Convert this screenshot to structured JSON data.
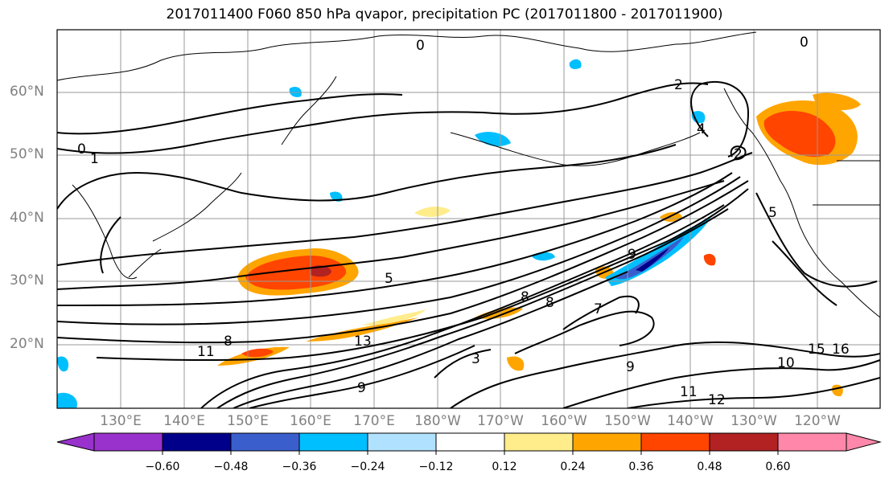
{
  "title": "2017011400 F060 850 hPa qvapor, precipitation PC (2017011800 - 2017011900)",
  "map": {
    "lat_labels": [
      "60°N",
      "50°N",
      "40°N",
      "30°N",
      "20°N"
    ],
    "lon_labels": [
      "130°E",
      "140°E",
      "150°E",
      "160°E",
      "170°E",
      "180°W",
      "170°W",
      "160°W",
      "150°W",
      "140°W",
      "130°W",
      "120°W"
    ],
    "contour_labels": [
      "0",
      "0",
      "0",
      "1",
      "2",
      "2",
      "5",
      "5",
      "8",
      "8",
      "9",
      "10",
      "11",
      "11",
      "12",
      "13",
      "15",
      "16",
      "3",
      "4",
      "7",
      "8",
      "9",
      "9"
    ]
  },
  "colorbar": {
    "tick_labels": [
      "−0.60",
      "−0.48",
      "−0.36",
      "−0.24",
      "−0.12",
      "0.12",
      "0.24",
      "0.36",
      "0.48",
      "0.60"
    ],
    "colors": [
      "#9932cc",
      "#00008b",
      "#3a5fcd",
      "#00bfff",
      "#b0e2ff",
      "#ffffff",
      "#ffec8b",
      "#ffa500",
      "#ff4500",
      "#b22222",
      "#ff88aa"
    ]
  }
}
